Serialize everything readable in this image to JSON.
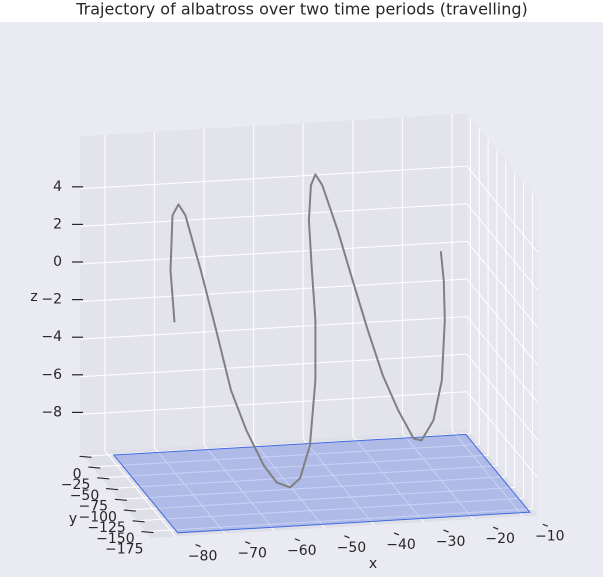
{
  "chart_data": {
    "type": "line3d",
    "title": "Trajectory of albatross over two time periods (travelling)",
    "xlabel": "x",
    "ylabel": "y",
    "zlabel": "z",
    "x": [
      -73.8,
      -74.6,
      -74.2,
      -73.0,
      -71.6,
      -68.5,
      -65.4,
      -62.4,
      -59.3,
      -55.8,
      -53.2,
      -50.5,
      -48.5,
      -46.5,
      -45.4,
      -45.4,
      -46.1,
      -46.7,
      -46.3,
      -45.4,
      -44.0,
      -40.9,
      -37.9,
      -34.8,
      -31.8,
      -28.7,
      -25.6,
      -24.0,
      -21.6,
      -19.9,
      -19.3,
      -19.5,
      -20.1
    ],
    "y": [
      -100,
      -100,
      -100,
      -100,
      -100,
      -100,
      -100,
      -100,
      -100,
      -100,
      -100,
      -100,
      -100,
      -100,
      -100,
      -100,
      -100,
      -100,
      -100,
      -100,
      -100,
      -100,
      -100,
      -100,
      -100,
      -100,
      -100,
      -100,
      -100,
      -100,
      -100,
      -100,
      -100
    ],
    "z": [
      -0.76,
      2.02,
      4.94,
      5.5,
      4.9,
      1.92,
      -1.32,
      -4.55,
      -6.73,
      -8.65,
      -9.59,
      -9.9,
      -9.45,
      -7.73,
      -4.28,
      -1.09,
      1.58,
      4.25,
      6.1,
      6.67,
      6.07,
      3.63,
      0.92,
      -1.79,
      -4.23,
      -6.14,
      -7.68,
      -7.81,
      -6.78,
      -4.68,
      -1.5,
      0.6,
      2.2
    ],
    "color": "#808080",
    "xlim": [
      -85,
      -7
    ],
    "ylim": [
      -190,
      10
    ],
    "zlim": [
      -10,
      6.8
    ],
    "xticks": [
      {
        "value": -80,
        "label": "−80"
      },
      {
        "value": -70,
        "label": "−70"
      },
      {
        "value": -60,
        "label": "−60"
      },
      {
        "value": -50,
        "label": "−50"
      },
      {
        "value": -40,
        "label": "−40"
      },
      {
        "value": -30,
        "label": "−30"
      },
      {
        "value": -20,
        "label": "−20"
      },
      {
        "value": -10,
        "label": "−10"
      }
    ],
    "yticks": [
      0,
      {
        "value": -25,
        "label": "−25"
      },
      {
        "value": -50,
        "label": "−50"
      },
      {
        "value": -75,
        "label": "−75"
      },
      {
        "value": -100,
        "label": "−100"
      },
      {
        "value": -125,
        "label": "−125"
      },
      {
        "value": -150,
        "label": "−150"
      },
      {
        "value": -175,
        "label": "−175"
      }
    ],
    "zticks": [
      {
        "value": -8,
        "label": "−8"
      },
      {
        "value": -6,
        "label": "−6"
      },
      {
        "value": -4,
        "label": "−4"
      },
      {
        "value": -2,
        "label": "−2"
      },
      0,
      2,
      4
    ],
    "grid": true,
    "plane": {
      "x": [
        -79,
        -8
      ],
      "y": [
        -182,
        -1
      ],
      "z": -10,
      "color": "#4169e1"
    }
  }
}
